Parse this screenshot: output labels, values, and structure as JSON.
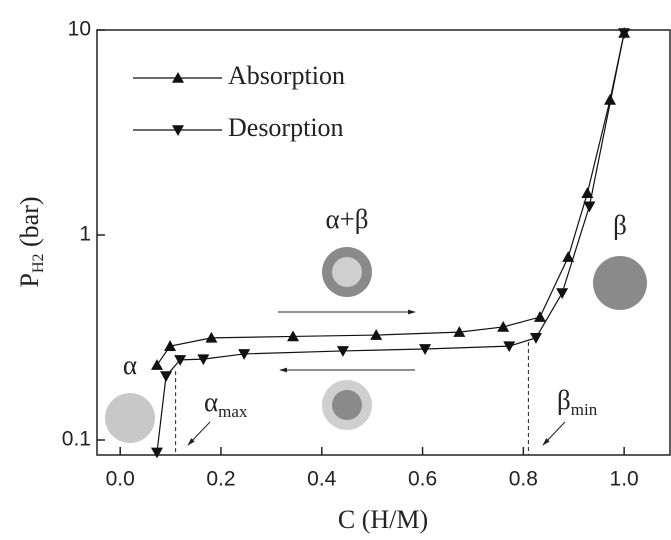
{
  "chart_data": {
    "type": "line",
    "x_label": "C (H/M)",
    "y_label": {
      "text": "P",
      "sub": "H2",
      "suffix": " (bar)"
    },
    "xlim": [
      -0.046,
      1.091
    ],
    "xticks": [
      {
        "value": 0,
        "label": "0.0"
      },
      0.2,
      0.4,
      0.6,
      0.8,
      {
        "value": 1,
        "label": "1.0"
      }
    ],
    "ylim": [
      0.0845,
      10
    ],
    "yticks": [
      0.1,
      1,
      10
    ],
    "log_y": true,
    "legend": "upper left",
    "series": [
      {
        "name": "Absorption",
        "color": "#111",
        "marker": "triangle-up",
        "x": [
          0.073,
          0.099,
          0.181,
          0.343,
          0.508,
          0.673,
          0.76,
          0.833,
          0.889,
          0.927,
          0.972,
          1.0
        ],
        "values": [
          0.232,
          0.287,
          0.315,
          0.32,
          0.325,
          0.336,
          0.356,
          0.398,
          0.78,
          1.6,
          4.56,
          9.67
        ]
      },
      {
        "name": "Desorption",
        "color": "#111",
        "marker": "triangle-down",
        "x": [
          0.073,
          0.091,
          0.119,
          0.165,
          0.246,
          0.442,
          0.605,
          0.772,
          0.825,
          0.877,
          0.931,
          1.0
        ],
        "values": [
          0.087,
          0.205,
          0.246,
          0.248,
          0.263,
          0.272,
          0.278,
          0.287,
          0.315,
          0.521,
          1.38,
          9.67
        ]
      }
    ],
    "reference_lines": [
      0.11,
      0.81
    ],
    "annotations": [
      {
        "text": "α"
      },
      {
        "text": "α+β"
      },
      {
        "text": "β"
      },
      {
        "text": "α",
        "sub": "max"
      },
      {
        "text": "β",
        "sub": "min"
      }
    ]
  }
}
